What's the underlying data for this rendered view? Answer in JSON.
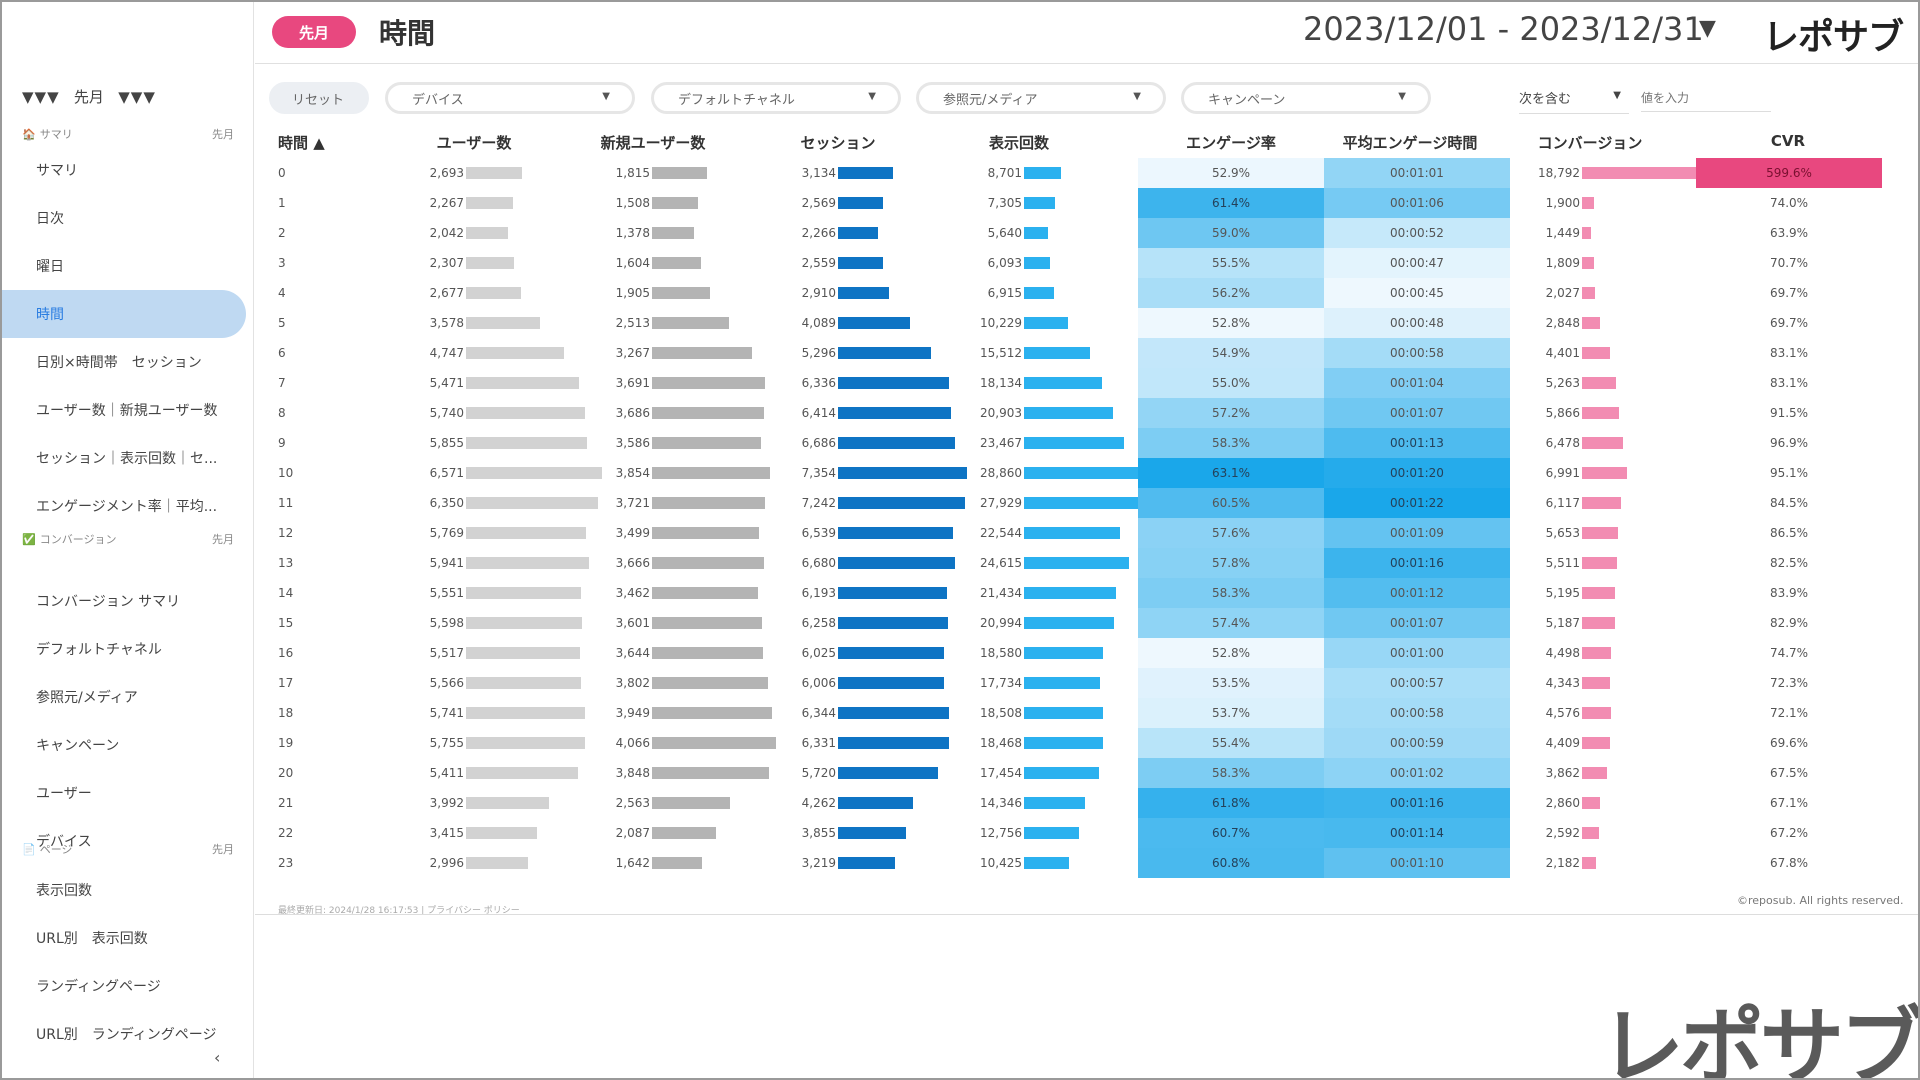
{
  "sidebar": {
    "top_label": "先月",
    "top_arrows": "▼▼▼",
    "sections": [
      {
        "icon": "home-icon",
        "glyph": "🏠",
        "title": "サマリ",
        "tag": "先月"
      },
      {
        "icon": "check-icon",
        "glyph": "✅",
        "title": "コンバージョン",
        "tag": "先月"
      },
      {
        "icon": "page-icon",
        "glyph": "📄",
        "title": "ページ",
        "tag": "先月"
      }
    ],
    "items": [
      {
        "label": "サマリ"
      },
      {
        "label": "日次"
      },
      {
        "label": "曜日"
      },
      {
        "label": "時間",
        "active": true
      },
      {
        "label": "日別×時間帯　セッション"
      },
      {
        "label": "ユーザー数｜新規ユーザー数"
      },
      {
        "label": "セッション｜表示回数｜セ..."
      },
      {
        "label": "エンゲージメント率｜平均..."
      },
      {
        "label": "コンバージョン サマリ"
      },
      {
        "label": "デフォルトチャネル"
      },
      {
        "label": "参照元/メディア"
      },
      {
        "label": "キャンペーン"
      },
      {
        "label": "ユーザー"
      },
      {
        "label": "デバイス"
      },
      {
        "label": "表示回数"
      },
      {
        "label": "URL別　表示回数"
      },
      {
        "label": "ランディングページ"
      },
      {
        "label": "URL別　ランディングページ"
      }
    ],
    "collapse_icon": "chevron-left-icon",
    "collapse_glyph": "‹"
  },
  "header": {
    "period": "先月",
    "title": "時間",
    "date_range": "2023/12/01 - 2023/12/31",
    "date_caret": "▼",
    "logo": "レポサブ"
  },
  "filters": {
    "reset": "リセット",
    "dropdowns": [
      "デバイス",
      "デフォルトチャネル",
      "参照元/メディア",
      "キャンペーン"
    ],
    "caret": "▼",
    "match_mode": "次を含む",
    "value_placeholder": "値を入力"
  },
  "table": {
    "columns": [
      "時間 ▲",
      "ユーザー数",
      "新規ユーザー数",
      "セッション",
      "表示回数",
      "エンゲージ率",
      "平均エンゲージ時間",
      "コンバージョン",
      "CVR"
    ],
    "rows": [
      {
        "hour": "0",
        "users": "2,693",
        "new_users": "1,815",
        "sessions": "3,134",
        "views": "8,701",
        "engage": "52.9%",
        "avg_time": "00:01:01",
        "conversions": "18,792",
        "cvr": "599.6%"
      },
      {
        "hour": "1",
        "users": "2,267",
        "new_users": "1,508",
        "sessions": "2,569",
        "views": "7,305",
        "engage": "61.4%",
        "avg_time": "00:01:06",
        "conversions": "1,900",
        "cvr": "74.0%"
      },
      {
        "hour": "2",
        "users": "2,042",
        "new_users": "1,378",
        "sessions": "2,266",
        "views": "5,640",
        "engage": "59.0%",
        "avg_time": "00:00:52",
        "conversions": "1,449",
        "cvr": "63.9%"
      },
      {
        "hour": "3",
        "users": "2,307",
        "new_users": "1,604",
        "sessions": "2,559",
        "views": "6,093",
        "engage": "55.5%",
        "avg_time": "00:00:47",
        "conversions": "1,809",
        "cvr": "70.7%"
      },
      {
        "hour": "4",
        "users": "2,677",
        "new_users": "1,905",
        "sessions": "2,910",
        "views": "6,915",
        "engage": "56.2%",
        "avg_time": "00:00:45",
        "conversions": "2,027",
        "cvr": "69.7%"
      },
      {
        "hour": "5",
        "users": "3,578",
        "new_users": "2,513",
        "sessions": "4,089",
        "views": "10,229",
        "engage": "52.8%",
        "avg_time": "00:00:48",
        "conversions": "2,848",
        "cvr": "69.7%"
      },
      {
        "hour": "6",
        "users": "4,747",
        "new_users": "3,267",
        "sessions": "5,296",
        "views": "15,512",
        "engage": "54.9%",
        "avg_time": "00:00:58",
        "conversions": "4,401",
        "cvr": "83.1%"
      },
      {
        "hour": "7",
        "users": "5,471",
        "new_users": "3,691",
        "sessions": "6,336",
        "views": "18,134",
        "engage": "55.0%",
        "avg_time": "00:01:04",
        "conversions": "5,263",
        "cvr": "83.1%"
      },
      {
        "hour": "8",
        "users": "5,740",
        "new_users": "3,686",
        "sessions": "6,414",
        "views": "20,903",
        "engage": "57.2%",
        "avg_time": "00:01:07",
        "conversions": "5,866",
        "cvr": "91.5%"
      },
      {
        "hour": "9",
        "users": "5,855",
        "new_users": "3,586",
        "sessions": "6,686",
        "views": "23,467",
        "engage": "58.3%",
        "avg_time": "00:01:13",
        "conversions": "6,478",
        "cvr": "96.9%"
      },
      {
        "hour": "10",
        "users": "6,571",
        "new_users": "3,854",
        "sessions": "7,354",
        "views": "28,860",
        "engage": "63.1%",
        "avg_time": "00:01:20",
        "conversions": "6,991",
        "cvr": "95.1%"
      },
      {
        "hour": "11",
        "users": "6,350",
        "new_users": "3,721",
        "sessions": "7,242",
        "views": "27,929",
        "engage": "60.5%",
        "avg_time": "00:01:22",
        "conversions": "6,117",
        "cvr": "84.5%"
      },
      {
        "hour": "12",
        "users": "5,769",
        "new_users": "3,499",
        "sessions": "6,539",
        "views": "22,544",
        "engage": "57.6%",
        "avg_time": "00:01:09",
        "conversions": "5,653",
        "cvr": "86.5%"
      },
      {
        "hour": "13",
        "users": "5,941",
        "new_users": "3,666",
        "sessions": "6,680",
        "views": "24,615",
        "engage": "57.8%",
        "avg_time": "00:01:16",
        "conversions": "5,511",
        "cvr": "82.5%"
      },
      {
        "hour": "14",
        "users": "5,551",
        "new_users": "3,462",
        "sessions": "6,193",
        "views": "21,434",
        "engage": "58.3%",
        "avg_time": "00:01:12",
        "conversions": "5,195",
        "cvr": "83.9%"
      },
      {
        "hour": "15",
        "users": "5,598",
        "new_users": "3,601",
        "sessions": "6,258",
        "views": "20,994",
        "engage": "57.4%",
        "avg_time": "00:01:07",
        "conversions": "5,187",
        "cvr": "82.9%"
      },
      {
        "hour": "16",
        "users": "5,517",
        "new_users": "3,644",
        "sessions": "6,025",
        "views": "18,580",
        "engage": "52.8%",
        "avg_time": "00:01:00",
        "conversions": "4,498",
        "cvr": "74.7%"
      },
      {
        "hour": "17",
        "users": "5,566",
        "new_users": "3,802",
        "sessions": "6,006",
        "views": "17,734",
        "engage": "53.5%",
        "avg_time": "00:00:57",
        "conversions": "4,343",
        "cvr": "72.3%"
      },
      {
        "hour": "18",
        "users": "5,741",
        "new_users": "3,949",
        "sessions": "6,344",
        "views": "18,508",
        "engage": "53.7%",
        "avg_time": "00:00:58",
        "conversions": "4,576",
        "cvr": "72.1%"
      },
      {
        "hour": "19",
        "users": "5,755",
        "new_users": "4,066",
        "sessions": "6,331",
        "views": "18,468",
        "engage": "55.4%",
        "avg_time": "00:00:59",
        "conversions": "4,409",
        "cvr": "69.6%"
      },
      {
        "hour": "20",
        "users": "5,411",
        "new_users": "3,848",
        "sessions": "5,720",
        "views": "17,454",
        "engage": "58.3%",
        "avg_time": "00:01:02",
        "conversions": "3,862",
        "cvr": "67.5%"
      },
      {
        "hour": "21",
        "users": "3,992",
        "new_users": "2,563",
        "sessions": "4,262",
        "views": "14,346",
        "engage": "61.8%",
        "avg_time": "00:01:16",
        "conversions": "2,860",
        "cvr": "67.1%"
      },
      {
        "hour": "22",
        "users": "3,415",
        "new_users": "2,087",
        "sessions": "3,855",
        "views": "12,756",
        "engage": "60.7%",
        "avg_time": "00:01:14",
        "conversions": "2,592",
        "cvr": "67.2%"
      },
      {
        "hour": "23",
        "users": "2,996",
        "new_users": "1,642",
        "sessions": "3,219",
        "views": "10,425",
        "engage": "60.8%",
        "avg_time": "00:01:10",
        "conversions": "2,182",
        "cvr": "67.8%"
      }
    ]
  },
  "colors": {
    "accent_pink": "#e8487f",
    "bar_users": "#d2d2d2",
    "bar_new_users": "#b4b4b4",
    "bar_sessions": "#0e74c4",
    "bar_views": "#2bb1ef",
    "bar_conversions": "#f28cb2",
    "heat_low": "#eef8fe",
    "heat_high": "#1aa7ea",
    "cvr_highlight": "#e8487f",
    "active_nav_bg": "#bfd9f2",
    "active_nav_text": "#2a7de1"
  },
  "footer": {
    "updated": "最終更新日: 2024/1/28 16:17:53",
    "sep": "|",
    "privacy": "プライバシー ポリシー",
    "copyright": "©reposub. All rights reserved."
  },
  "watermark": "レポサブ"
}
